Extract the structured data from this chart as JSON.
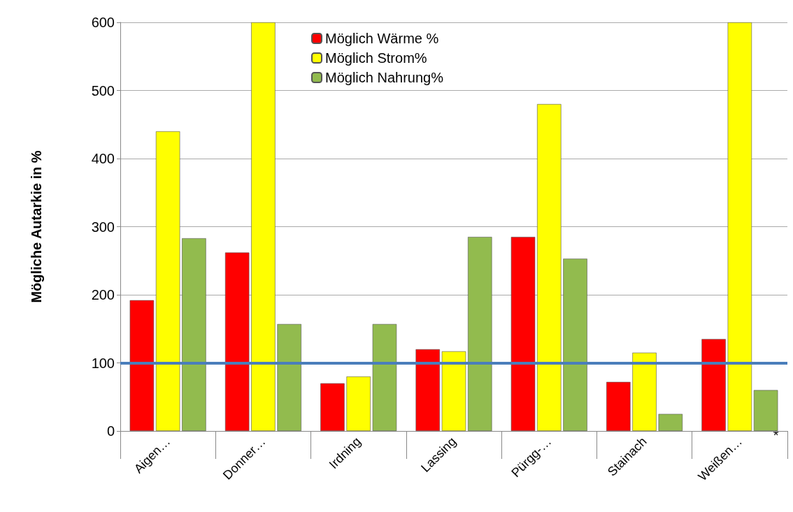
{
  "chart_data": {
    "type": "bar",
    "ylabel": "Mögliche Autarkie in %",
    "categories": [
      "Aigen…",
      "Donner…",
      "Irdning",
      "Lassing",
      "Pürgg-…",
      "Stainach",
      "Weißen…"
    ],
    "series": [
      {
        "name": "Möglich Wärme %",
        "color": "#ff0000",
        "values": [
          192,
          262,
          70,
          120,
          285,
          72,
          135
        ]
      },
      {
        "name": "Möglich Strom%",
        "color": "#ffff00",
        "values": [
          440,
          600,
          80,
          117,
          480,
          115,
          600
        ]
      },
      {
        "name": "Möglich Nahrung%",
        "color": "#92bb4e",
        "values": [
          283,
          157,
          157,
          285,
          253,
          25,
          60
        ]
      }
    ],
    "ylim": [
      0,
      600
    ],
    "yticks": [
      0,
      100,
      200,
      300,
      400,
      500,
      600
    ],
    "grid": "y",
    "legend": "top",
    "ref_lines": [
      {
        "axis": "y",
        "value": 100,
        "label": null,
        "color": "#4a7ebb"
      }
    ],
    "annotations": [
      {
        "text": "*",
        "x": "Weißen…",
        "y": 0
      }
    ]
  }
}
